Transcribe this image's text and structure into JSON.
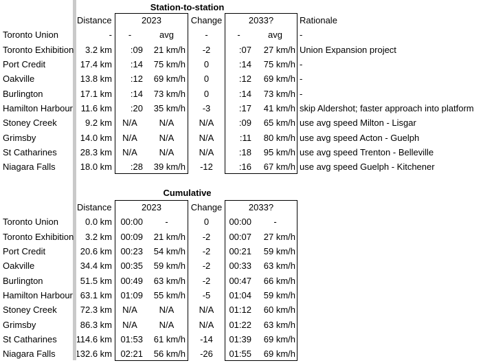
{
  "colors": {
    "pane_divider": "#c9c9c9",
    "border": "#000000",
    "background": "#ffffff",
    "text": "#000000"
  },
  "tables": {
    "s2s": {
      "title": "Station-to-station",
      "headers": {
        "distance": "Distance",
        "y2023": "2023",
        "change": "Change",
        "y2033": "2033?",
        "rationale": "Rationale"
      },
      "rows": [
        {
          "station": "Toronto Union",
          "distance": "-",
          "time_2023": "-",
          "speed_2023": "avg",
          "change": "-",
          "time_2033": "-",
          "speed_2033": "avg",
          "rationale": "-"
        },
        {
          "station": "Toronto Exhibition",
          "distance": "3.2 km",
          "time_2023": ":09",
          "speed_2023": "21 km/h",
          "change": "-2",
          "time_2033": ":07",
          "speed_2033": "27 km/h",
          "rationale": "Union Expansion project"
        },
        {
          "station": "Port Credit",
          "distance": "17.4 km",
          "time_2023": ":14",
          "speed_2023": "75 km/h",
          "change": "0",
          "time_2033": ":14",
          "speed_2033": "75 km/h",
          "rationale": "-"
        },
        {
          "station": "Oakville",
          "distance": "13.8 km",
          "time_2023": ":12",
          "speed_2023": "69 km/h",
          "change": "0",
          "time_2033": ":12",
          "speed_2033": "69 km/h",
          "rationale": "-"
        },
        {
          "station": "Burlington",
          "distance": "17.1 km",
          "time_2023": ":14",
          "speed_2023": "73 km/h",
          "change": "0",
          "time_2033": ":14",
          "speed_2033": "73 km/h",
          "rationale": "-"
        },
        {
          "station": "Hamilton Harbour",
          "distance": "11.6 km",
          "time_2023": ":20",
          "speed_2023": "35 km/h",
          "change": "-3",
          "time_2033": ":17",
          "speed_2033": "41 km/h",
          "rationale": "skip Aldershot; faster approach into platform"
        },
        {
          "station": "Stoney Creek",
          "distance": "9.2 km",
          "time_2023": "N/A",
          "speed_2023": "N/A",
          "change": "N/A",
          "time_2033": ":09",
          "speed_2033": "65 km/h",
          "rationale": "use avg speed Milton - Lisgar"
        },
        {
          "station": "Grimsby",
          "distance": "14.0 km",
          "time_2023": "N/A",
          "speed_2023": "N/A",
          "change": "N/A",
          "time_2033": ":11",
          "speed_2033": "80 km/h",
          "rationale": "use avg speed Acton - Guelph"
        },
        {
          "station": "St Catharines",
          "distance": "28.3 km",
          "time_2023": "N/A",
          "speed_2023": "N/A",
          "change": "N/A",
          "time_2033": ":18",
          "speed_2033": "95 km/h",
          "rationale": "use avg speed Trenton - Belleville"
        },
        {
          "station": "Niagara Falls",
          "distance": "18.0 km",
          "time_2023": ":28",
          "speed_2023": "39 km/h",
          "change": "-12",
          "time_2033": ":16",
          "speed_2033": "67 km/h",
          "rationale": "use avg speed Guelph - Kitchener"
        }
      ]
    },
    "cumulative": {
      "title": "Cumulative",
      "headers": {
        "distance": "Distance",
        "y2023": "2023",
        "change": "Change",
        "y2033": "2033?"
      },
      "rows": [
        {
          "station": "Toronto Union",
          "distance": "0.0 km",
          "time_2023": "00:00",
          "speed_2023": "-",
          "change": "0",
          "time_2033": "00:00",
          "speed_2033": "-"
        },
        {
          "station": "Toronto Exhibition",
          "distance": "3.2 km",
          "time_2023": "00:09",
          "speed_2023": "21 km/h",
          "change": "-2",
          "time_2033": "00:07",
          "speed_2033": "27 km/h"
        },
        {
          "station": "Port Credit",
          "distance": "20.6 km",
          "time_2023": "00:23",
          "speed_2023": "54 km/h",
          "change": "-2",
          "time_2033": "00:21",
          "speed_2033": "59 km/h"
        },
        {
          "station": "Oakville",
          "distance": "34.4 km",
          "time_2023": "00:35",
          "speed_2023": "59 km/h",
          "change": "-2",
          "time_2033": "00:33",
          "speed_2033": "63 km/h"
        },
        {
          "station": "Burlington",
          "distance": "51.5 km",
          "time_2023": "00:49",
          "speed_2023": "63 km/h",
          "change": "-2",
          "time_2033": "00:47",
          "speed_2033": "66 km/h"
        },
        {
          "station": "Hamilton Harbour",
          "distance": "63.1 km",
          "time_2023": "01:09",
          "speed_2023": "55 km/h",
          "change": "-5",
          "time_2033": "01:04",
          "speed_2033": "59 km/h"
        },
        {
          "station": "Stoney Creek",
          "distance": "72.3 km",
          "time_2023": "N/A",
          "speed_2023": "N/A",
          "change": "N/A",
          "time_2033": "01:12",
          "speed_2033": "60 km/h"
        },
        {
          "station": "Grimsby",
          "distance": "86.3 km",
          "time_2023": "N/A",
          "speed_2023": "N/A",
          "change": "N/A",
          "time_2033": "01:22",
          "speed_2033": "63 km/h"
        },
        {
          "station": "St Catharines",
          "distance": "114.6 km",
          "time_2023": "01:53",
          "speed_2023": "61 km/h",
          "change": "-14",
          "time_2033": "01:39",
          "speed_2033": "69 km/h"
        },
        {
          "station": "Niagara Falls",
          "distance": "132.6 km",
          "time_2023": "02:21",
          "speed_2023": "56 km/h",
          "change": "-26",
          "time_2033": "01:55",
          "speed_2033": "69 km/h"
        }
      ]
    }
  }
}
